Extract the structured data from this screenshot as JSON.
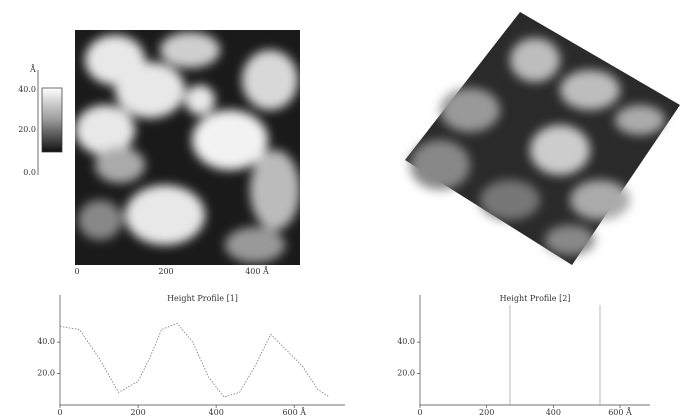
{
  "afm_2d": {
    "colorbar_unit": "Å",
    "colorbar_labels": [
      "40.0",
      "20.0",
      "0.0"
    ],
    "x_labels": [
      "0",
      "200",
      "400 Å"
    ]
  },
  "profiles": [
    {
      "title": "Height Profile [1]",
      "x": [
        0,
        50,
        100,
        150,
        200,
        230,
        260,
        300,
        340,
        380,
        420,
        460,
        500,
        540,
        580,
        620,
        660,
        690
      ],
      "values": [
        50,
        48,
        30,
        8,
        15,
        30,
        48,
        52,
        40,
        18,
        5,
        8,
        25,
        45,
        35,
        25,
        10,
        5
      ],
      "xlim": [
        0,
        730
      ],
      "ylim": [
        0,
        70
      ],
      "xticks": [
        0,
        200,
        400,
        {
          "value": 600,
          "label": "600 Å"
        }
      ],
      "yticks": [
        {
          "value": 40,
          "label": "40.0"
        },
        {
          "value": 20,
          "label": "20.0"
        }
      ]
    },
    {
      "title": "Height Profile [2]",
      "xlim": [
        0,
        690
      ],
      "ylim": [
        0,
        70
      ],
      "xticks": [
        0,
        200,
        400,
        {
          "value": 600,
          "label": "600 Å"
        }
      ],
      "yticks": [
        {
          "value": 40,
          "label": "40.0"
        },
        {
          "value": 20,
          "label": "20.0"
        }
      ]
    }
  ]
}
